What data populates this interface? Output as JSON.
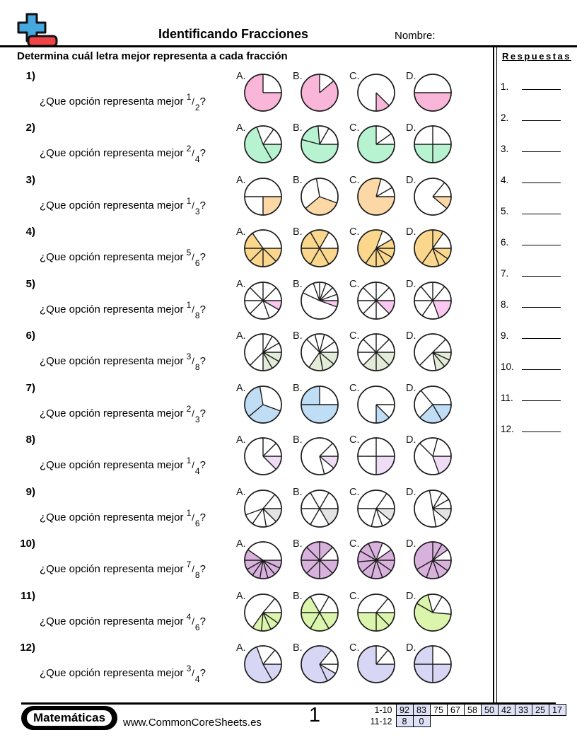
{
  "header": {
    "title": "Identificando Fracciones",
    "name_label": "Nombre:",
    "instruction": "Determina cuál letra mejor representa a cada fracción"
  },
  "answers": {
    "title": "Respuestas",
    "items": [
      "1.",
      "2.",
      "3.",
      "4.",
      "5.",
      "6.",
      "7.",
      "8.",
      "9.",
      "10.",
      "11.",
      "12."
    ]
  },
  "question_prompt_prefix": "¿Que opción representa mejor",
  "question_prompt_suffix": "?",
  "option_labels": [
    "A.",
    "B.",
    "C.",
    "D."
  ],
  "questions": [
    {
      "number": "1)",
      "fraction": {
        "numerator": "1",
        "denominator": "2"
      },
      "color": "#f9b6d8",
      "options": [
        {
          "label": "A.",
          "lines": [
            0,
            90
          ],
          "shaded": [
            [
              90,
              360
            ]
          ]
        },
        {
          "label": "B.",
          "lines": [
            0,
            50
          ],
          "shaded": [
            [
              50,
              360
            ]
          ]
        },
        {
          "label": "C.",
          "lines": [
            135,
            180
          ],
          "shaded": [
            [
              135,
              180
            ]
          ]
        },
        {
          "label": "D.",
          "lines": [
            90,
            270
          ],
          "shaded": [
            [
              90,
              270
            ]
          ]
        }
      ]
    },
    {
      "number": "2)",
      "fraction": {
        "numerator": "2",
        "denominator": "4"
      },
      "color": "#b7f2d1",
      "options": [
        {
          "label": "A.",
          "lines": [
            340,
            35,
            90,
            150
          ],
          "shaded": [
            [
              90,
              340
            ]
          ]
        },
        {
          "label": "B.",
          "lines": [
            285,
            355,
            30,
            90
          ],
          "shaded": [
            [
              90,
              355
            ]
          ]
        },
        {
          "label": "C.",
          "lines": [
            0,
            55,
            90
          ],
          "shaded": [
            [
              90,
              360
            ]
          ]
        },
        {
          "label": "D.",
          "lines": [
            0,
            90,
            180,
            270
          ],
          "shaded": [
            [
              90,
              270
            ]
          ]
        }
      ]
    },
    {
      "number": "3)",
      "fraction": {
        "numerator": "1",
        "denominator": "3"
      },
      "color": "#fbd8a6",
      "options": [
        {
          "label": "A.",
          "lines": [
            90,
            180,
            270
          ],
          "shaded": [
            [
              90,
              180
            ]
          ]
        },
        {
          "label": "B.",
          "lines": [
            350,
            110,
            230
          ],
          "shaded": [
            [
              110,
              230
            ]
          ]
        },
        {
          "label": "C.",
          "lines": [
            15,
            60,
            90
          ],
          "shaded": [
            [
              90,
              15
            ]
          ]
        },
        {
          "label": "D.",
          "lines": [
            40,
            90,
            130
          ],
          "shaded": [
            [
              90,
              130
            ]
          ]
        }
      ]
    },
    {
      "number": "4)",
      "fraction": {
        "numerator": "5",
        "denominator": "6"
      },
      "color": "#fad78d",
      "options": [
        {
          "label": "A.",
          "lines": [
            325,
            90,
            135,
            180,
            225,
            270
          ],
          "shaded": [
            [
              90,
              325
            ]
          ]
        },
        {
          "label": "B.",
          "lines": [
            30,
            90,
            150,
            210,
            270,
            330
          ],
          "shaded": [
            [
              90,
              30
            ]
          ]
        },
        {
          "label": "C.",
          "lines": [
            20,
            60,
            90,
            120,
            150,
            180,
            215
          ],
          "shaded": [
            [
              60,
              20
            ]
          ]
        },
        {
          "label": "D.",
          "lines": [
            0,
            35,
            90,
            125,
            160,
            215
          ],
          "shaded": [
            [
              90,
              35
            ]
          ]
        }
      ]
    },
    {
      "number": "5)",
      "fraction": {
        "numerator": "1",
        "denominator": "8"
      },
      "color": "#f9c7ef",
      "options": [
        {
          "label": "A.",
          "lines": [
            315,
            0,
            45,
            90,
            120,
            160,
            225,
            270
          ],
          "shaded": [
            [
              90,
              120
            ]
          ]
        },
        {
          "label": "B.",
          "lines": [
            295,
            340,
            0,
            20,
            45,
            70,
            90,
            110
          ],
          "shaded": [
            [
              90,
              110
            ]
          ]
        },
        {
          "label": "C.",
          "lines": [
            0,
            45,
            90,
            135,
            180,
            225,
            270,
            315
          ],
          "shaded": [
            [
              90,
              135
            ]
          ]
        },
        {
          "label": "D.",
          "lines": [
            0,
            40,
            90,
            160,
            215,
            270,
            320
          ],
          "shaded": [
            [
              90,
              160
            ]
          ]
        }
      ]
    },
    {
      "number": "6)",
      "fraction": {
        "numerator": "3",
        "denominator": "8"
      },
      "color": "#e3ecd8",
      "options": [
        {
          "label": "A.",
          "lines": [
            0,
            30,
            60,
            90,
            120,
            150,
            180,
            225
          ],
          "shaded": [
            [
              90,
              180
            ]
          ]
        },
        {
          "label": "B.",
          "lines": [
            315,
            345,
            15,
            55,
            90,
            130,
            170,
            215
          ],
          "shaded": [
            [
              90,
              215
            ]
          ]
        },
        {
          "label": "C.",
          "lines": [
            0,
            45,
            90,
            135,
            180,
            225,
            270,
            315
          ],
          "shaded": [
            [
              90,
              225
            ]
          ]
        },
        {
          "label": "D.",
          "lines": [
            45,
            90,
            115,
            140,
            170,
            225
          ],
          "shaded": [
            [
              90,
              170
            ]
          ]
        }
      ]
    },
    {
      "number": "7)",
      "fraction": {
        "numerator": "2",
        "denominator": "3"
      },
      "color": "#c0ddf6",
      "options": [
        {
          "label": "A.",
          "lines": [
            350,
            110,
            230
          ],
          "shaded": [
            [
              110,
              350
            ]
          ]
        },
        {
          "label": "B.",
          "lines": [
            0,
            90,
            270
          ],
          "shaded": [
            [
              90,
              0
            ]
          ]
        },
        {
          "label": "C.",
          "lines": [
            90,
            135,
            180
          ],
          "shaded": [
            [
              135,
              180
            ]
          ]
        },
        {
          "label": "D.",
          "lines": [
            90,
            150,
            225,
            320
          ],
          "shaded": [
            [
              90,
              225
            ]
          ]
        }
      ]
    },
    {
      "number": "8)",
      "fraction": {
        "numerator": "1",
        "denominator": "4"
      },
      "color": "#eeddf5",
      "options": [
        {
          "label": "A.",
          "lines": [
            0,
            45,
            90,
            135
          ],
          "shaded": [
            [
              90,
              135
            ]
          ]
        },
        {
          "label": "B.",
          "lines": [
            45,
            90,
            130,
            165
          ],
          "shaded": [
            [
              90,
              130
            ]
          ]
        },
        {
          "label": "C.",
          "lines": [
            0,
            90,
            180,
            270
          ],
          "shaded": [
            [
              90,
              180
            ]
          ]
        },
        {
          "label": "D.",
          "lines": [
            315,
            15,
            90,
            160
          ],
          "shaded": [
            [
              90,
              160
            ]
          ]
        }
      ]
    },
    {
      "number": "9)",
      "fraction": {
        "numerator": "1",
        "denominator": "6"
      },
      "color": "#e4e4e4",
      "options": [
        {
          "label": "A.",
          "lines": [
            40,
            90,
            135,
            170,
            215,
            250
          ],
          "shaded": [
            [
              90,
              135
            ]
          ]
        },
        {
          "label": "B.",
          "lines": [
            30,
            90,
            150,
            210,
            270,
            330
          ],
          "shaded": [
            [
              90,
              150
            ]
          ]
        },
        {
          "label": "C.",
          "lines": [
            35,
            90,
            130,
            160,
            195,
            270
          ],
          "shaded": [
            [
              90,
              130
            ]
          ]
        },
        {
          "label": "D.",
          "lines": [
            350,
            30,
            60,
            90,
            130,
            170
          ],
          "shaded": [
            [
              90,
              130
            ]
          ]
        }
      ]
    },
    {
      "number": "10)",
      "fraction": {
        "numerator": "7",
        "denominator": "8"
      },
      "color": "#d8b2dd",
      "options": [
        {
          "label": "A.",
          "lines": [
            90,
            115,
            140,
            165,
            190,
            215,
            240,
            270,
            305
          ],
          "shaded": [
            [
              90,
              305
            ]
          ]
        },
        {
          "label": "B.",
          "lines": [
            0,
            45,
            90,
            135,
            180,
            225,
            270,
            315
          ],
          "shaded": [
            [
              90,
              45
            ]
          ]
        },
        {
          "label": "C.",
          "lines": [
            20,
            55,
            90,
            125,
            160,
            195,
            230,
            265,
            300,
            335
          ],
          "shaded": [
            [
              55,
              20
            ]
          ]
        },
        {
          "label": "D.",
          "lines": [
            0,
            30,
            55,
            90,
            125,
            160,
            200,
            240
          ],
          "shaded": [
            [
              90,
              55
            ]
          ]
        }
      ]
    },
    {
      "number": "11)",
      "fraction": {
        "numerator": "4",
        "denominator": "6"
      },
      "color": "#dbf5ad",
      "options": [
        {
          "label": "A.",
          "lines": [
            40,
            90,
            125,
            155,
            185,
            215
          ],
          "shaded": [
            [
              90,
              215
            ]
          ]
        },
        {
          "label": "B.",
          "lines": [
            30,
            90,
            150,
            210,
            270,
            330
          ],
          "shaded": [
            [
              90,
              330
            ]
          ]
        },
        {
          "label": "C.",
          "lines": [
            40,
            90,
            135,
            180,
            270
          ],
          "shaded": [
            [
              90,
              270
            ]
          ]
        },
        {
          "label": "D.",
          "lines": [
            300,
            345,
            30,
            95
          ],
          "shaded": [
            [
              95,
              345
            ]
          ]
        }
      ]
    },
    {
      "number": "12)",
      "fraction": {
        "numerator": "3",
        "denominator": "4"
      },
      "color": "#d8d6f5",
      "options": [
        {
          "label": "A.",
          "lines": [
            340,
            40,
            90,
            150
          ],
          "shaded": [
            [
              90,
              340
            ]
          ]
        },
        {
          "label": "B.",
          "lines": [
            40,
            90,
            120,
            155
          ],
          "shaded": [
            [
              120,
              40
            ]
          ]
        },
        {
          "label": "C.",
          "lines": [
            0,
            40,
            90
          ],
          "shaded": [
            [
              90,
              0
            ]
          ]
        },
        {
          "label": "D.",
          "lines": [
            0,
            90,
            180,
            270
          ],
          "shaded": [
            [
              90,
              0
            ]
          ]
        }
      ]
    }
  ],
  "footer": {
    "brand": "Matemáticas",
    "website": "www.CommonCoreSheets.es",
    "page_number": "1",
    "score_table": {
      "highlight_color": "#dfe2f6",
      "rows": [
        {
          "label": "1-10",
          "cells": [
            {
              "value": "92",
              "highlight": true
            },
            {
              "value": "83",
              "highlight": true
            },
            {
              "value": "75",
              "highlight": false
            },
            {
              "value": "67",
              "highlight": false
            },
            {
              "value": "58",
              "highlight": false
            },
            {
              "value": "50",
              "highlight": true
            },
            {
              "value": "42",
              "highlight": true
            },
            {
              "value": "33",
              "highlight": true
            },
            {
              "value": "25",
              "highlight": true
            },
            {
              "value": "17",
              "highlight": true
            }
          ]
        },
        {
          "label": "11-12",
          "cells": [
            {
              "value": "8",
              "highlight": true
            },
            {
              "value": "0",
              "highlight": true
            }
          ]
        }
      ]
    }
  },
  "logo_colors": {
    "plus": "#46a8de",
    "bar": "#ef4446"
  }
}
